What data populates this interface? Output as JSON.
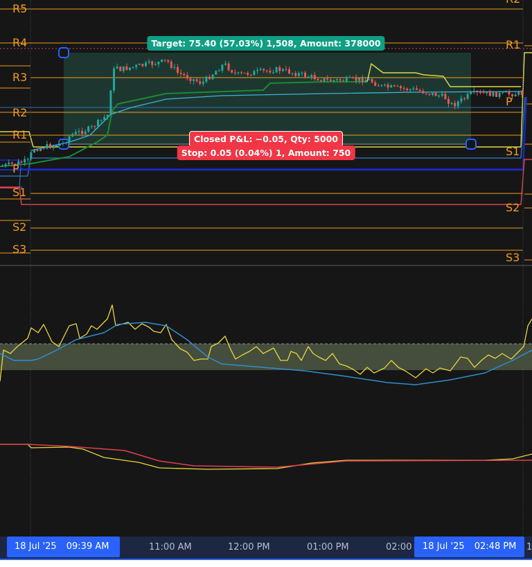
{
  "pivot_labels_left": {
    "R5": "R5",
    "R4": "R4",
    "R3": "R3",
    "R2": "R2",
    "R1": "R1",
    "P": "P",
    "S1": "S1",
    "S2": "S2",
    "S3": "S3"
  },
  "pivot_labels_right": {
    "R2": "R2",
    "R1": "R1",
    "P": "P",
    "S1": "S1",
    "S2": "S2",
    "S3": "S3"
  },
  "position": {
    "target_label": "Target: 75.40 (57.03%) 1,508, Amount: 378000",
    "closed_pnl_label": "Closed P&L: −0.05, Qty: 5000",
    "stop_label": "Stop: 0.05 (0.04%) 1, Amount: 750",
    "target_color": "#0e9f84",
    "stop_color": "#f23645"
  },
  "time_axis": {
    "start_date": "18 Jul '25",
    "start_time": "09:39 AM",
    "ticks": [
      "11:00 AM",
      "12:00 PM",
      "01:00 PM",
      "02:00"
    ],
    "end_date": "18 Jul '25",
    "end_time": "02:48 PM",
    "trailing": "1"
  },
  "colors": {
    "pivot": "#f29b1d",
    "up": "#26a69a",
    "down": "#ef5350",
    "accent": "#2962ff"
  }
}
